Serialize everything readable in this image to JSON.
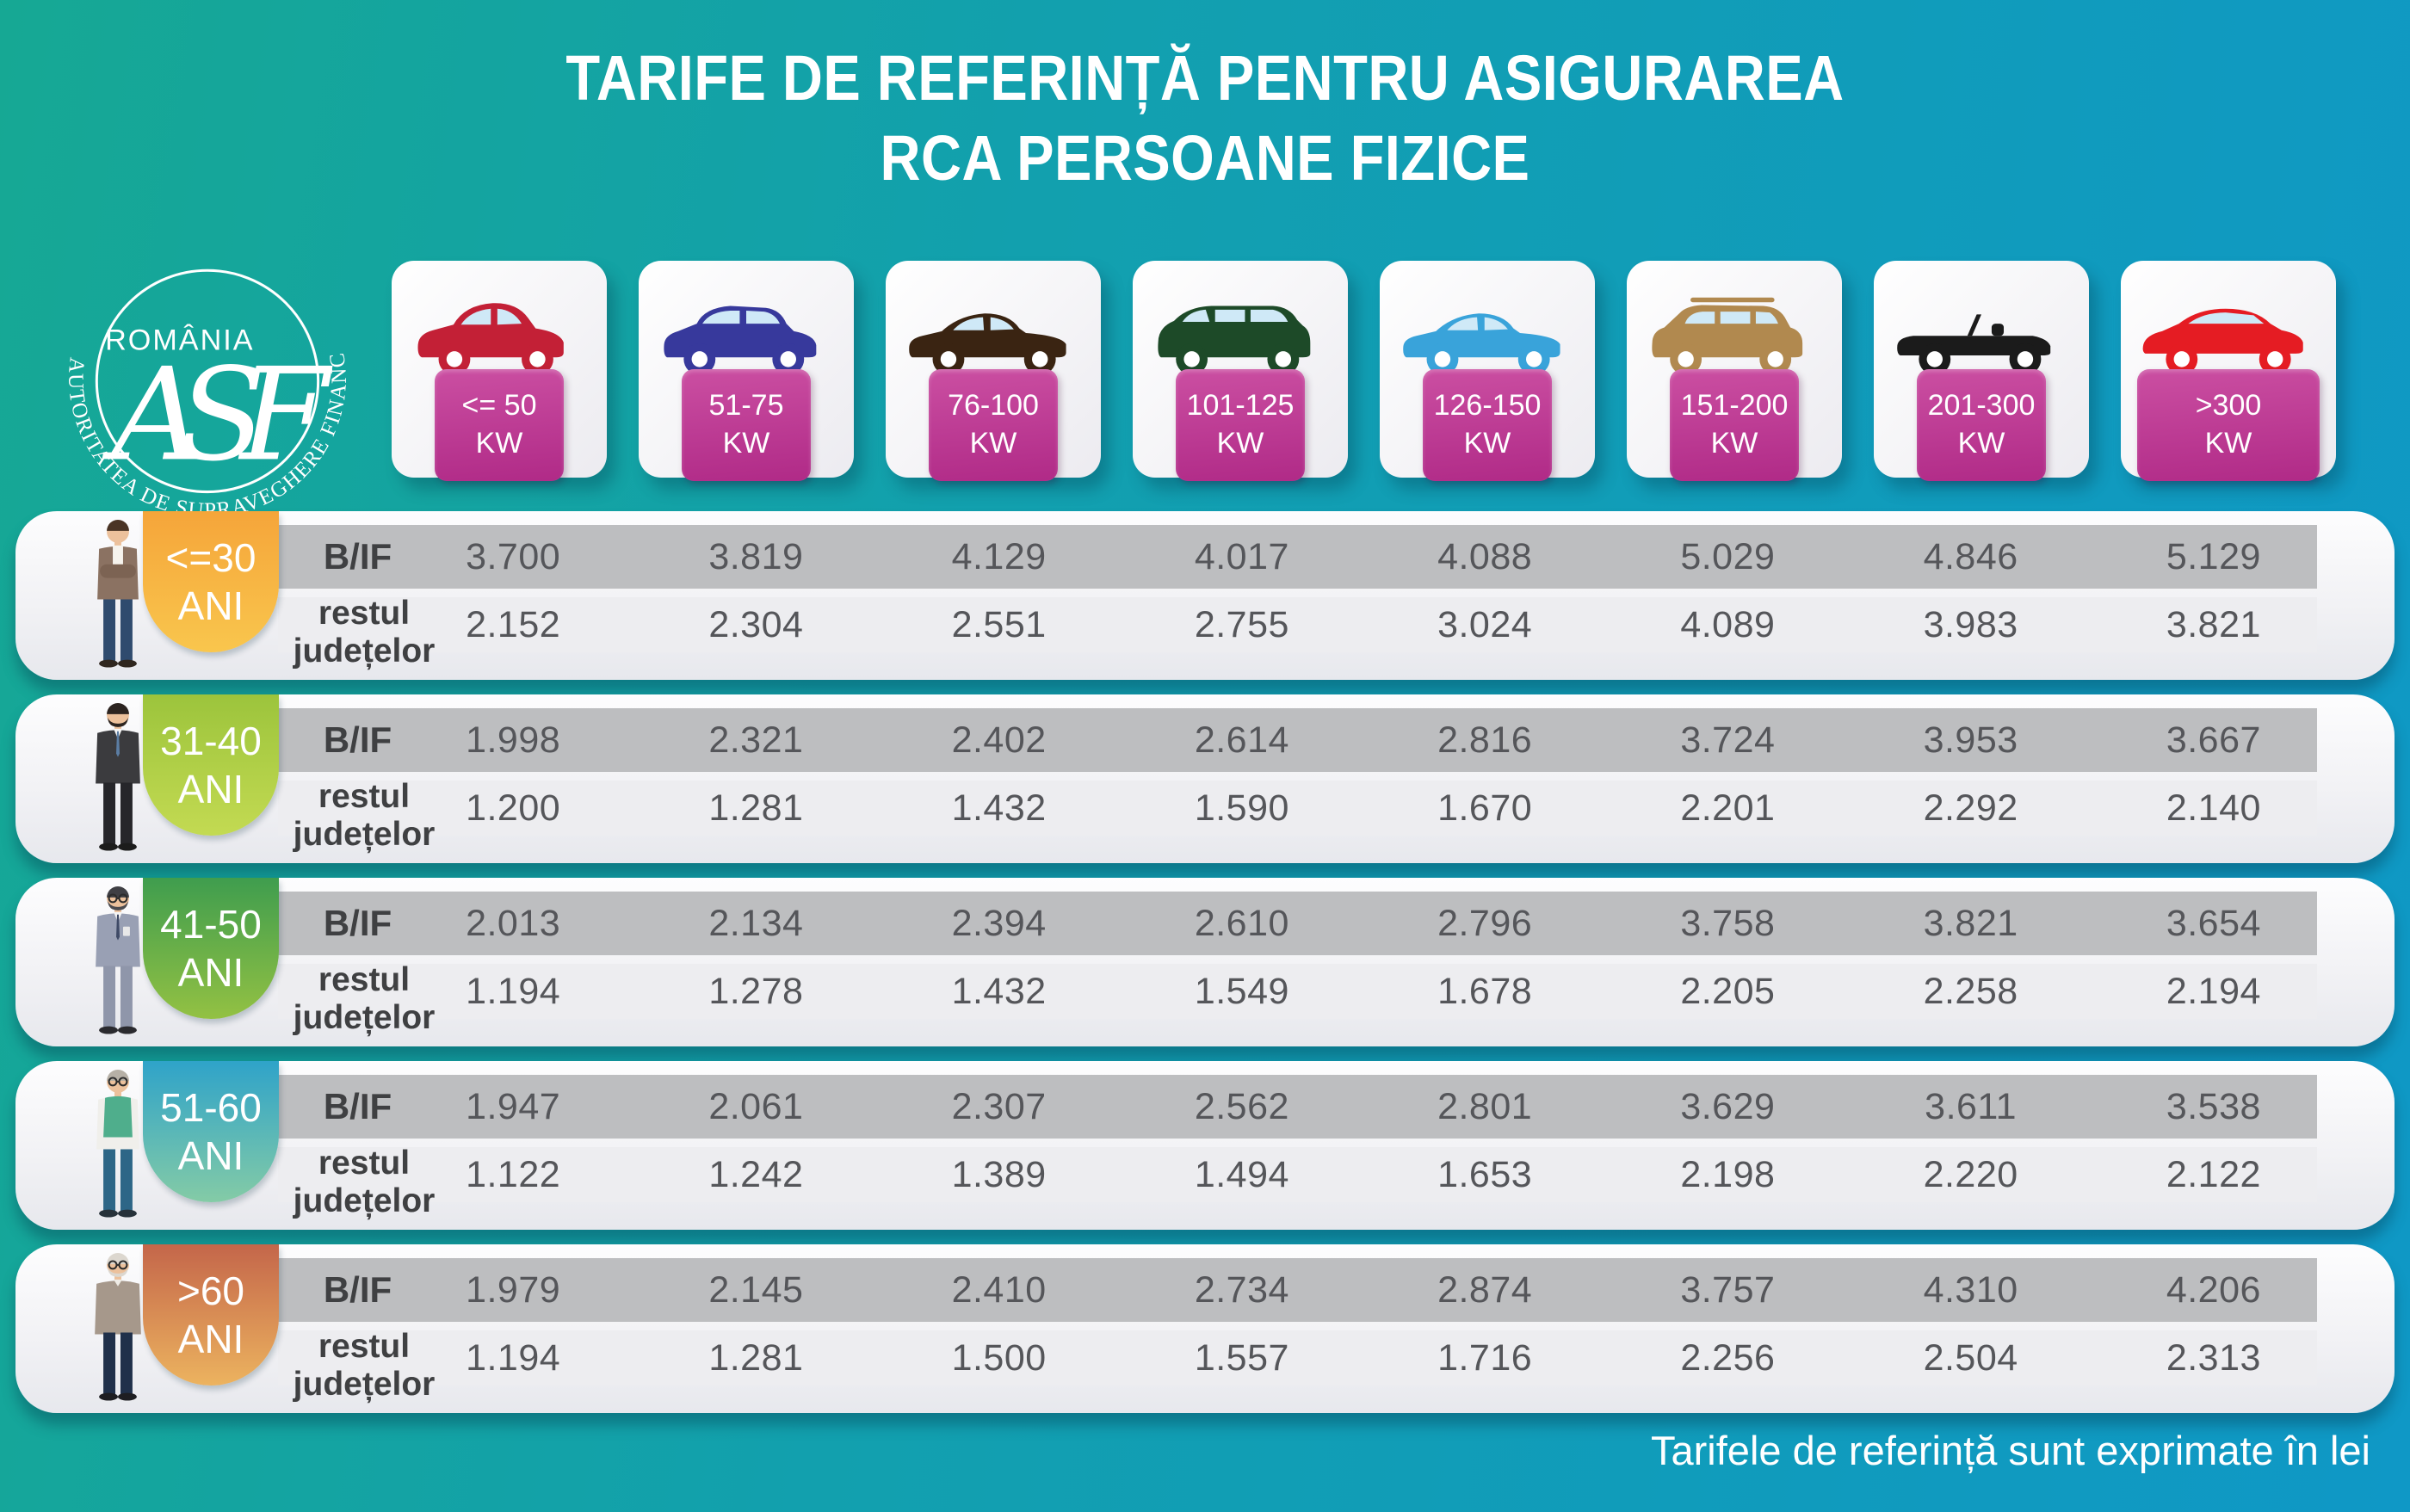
{
  "title": {
    "line1": "TARIFE DE REFERINȚĂ PENTRU ASIGURAREA",
    "line2": "RCA PERSOANE FIZICE"
  },
  "logo": {
    "country": "ROMÂNIA",
    "monogram": "ASF",
    "arc_text": "AUTORITATEA DE SUPRAVEGHERE FINANCIARĂ"
  },
  "power_columns": [
    {
      "range": "<= 50",
      "unit": "KW",
      "car": "hatchback",
      "car_color": "#c32036"
    },
    {
      "range": "51-75",
      "unit": "KW",
      "car": "crossover",
      "car_color": "#37399c"
    },
    {
      "range": "76-100",
      "unit": "KW",
      "car": "sedan",
      "car_color": "#3a2412"
    },
    {
      "range": "101-125",
      "unit": "KW",
      "car": "minivan",
      "car_color": "#1d4a28"
    },
    {
      "range": "126-150",
      "unit": "KW",
      "car": "sedan",
      "car_color": "#39a3da"
    },
    {
      "range": "151-200",
      "unit": "KW",
      "car": "suv",
      "car_color": "#b1894f"
    },
    {
      "range": "201-300",
      "unit": "KW",
      "car": "convertible",
      "car_color": "#1b1b1b"
    },
    {
      "range": ">300",
      "unit": "KW",
      "car": "sports",
      "car_color": "#e51c23"
    }
  ],
  "row_labels": {
    "bif": "B/IF",
    "rest_line1": "restul",
    "rest_line2": "județelor"
  },
  "age_groups": [
    {
      "range": "<=30",
      "suffix": "ANI",
      "person": "young-man",
      "badge_top": "#f5a53a",
      "badge_bottom": "#f9c64d",
      "bif": [
        "3.700",
        "3.819",
        "4.129",
        "4.017",
        "4.088",
        "5.029",
        "4.846",
        "5.129"
      ],
      "rest": [
        "2.152",
        "2.304",
        "2.551",
        "2.755",
        "3.024",
        "4.089",
        "3.983",
        "3.821"
      ]
    },
    {
      "range": "31-40",
      "suffix": "ANI",
      "person": "adult-man",
      "badge_top": "#9cc43c",
      "badge_bottom": "#c3da52",
      "bif": [
        "1.998",
        "2.321",
        "2.402",
        "2.614",
        "2.816",
        "3.724",
        "3.953",
        "3.667"
      ],
      "rest": [
        "1.200",
        "1.281",
        "1.432",
        "1.590",
        "1.670",
        "2.201",
        "2.292",
        "2.140"
      ]
    },
    {
      "range": "41-50",
      "suffix": "ANI",
      "person": "middle-aged-man",
      "badge_top": "#3f9d4e",
      "badge_bottom": "#93c143",
      "bif": [
        "2.013",
        "2.134",
        "2.394",
        "2.610",
        "2.796",
        "3.758",
        "3.821",
        "3.654"
      ],
      "rest": [
        "1.194",
        "1.278",
        "1.432",
        "1.549",
        "1.678",
        "2.205",
        "2.258",
        "2.194"
      ]
    },
    {
      "range": "51-60",
      "suffix": "ANI",
      "person": "senior-man",
      "badge_top": "#2fa3c9",
      "badge_bottom": "#84cba6",
      "bif": [
        "1.947",
        "2.061",
        "2.307",
        "2.562",
        "2.801",
        "3.629",
        "3.611",
        "3.538"
      ],
      "rest": [
        "1.122",
        "1.242",
        "1.389",
        "1.494",
        "1.653",
        "2.198",
        "2.220",
        "2.122"
      ]
    },
    {
      "range": ">60",
      "suffix": "ANI",
      "person": "elderly-man",
      "badge_top": "#c4664a",
      "badge_bottom": "#ecb35f",
      "bif": [
        "1.979",
        "2.145",
        "2.410",
        "2.734",
        "2.874",
        "3.757",
        "4.310",
        "4.206"
      ],
      "rest": [
        "1.194",
        "1.281",
        "1.500",
        "1.557",
        "1.716",
        "2.256",
        "2.504",
        "2.313"
      ]
    }
  ],
  "footnote": "Tarifele de referință sunt exprimate în lei",
  "colors": {
    "bg_left": "#16a894",
    "bg_mid": "#12a0ae",
    "bg_right": "#0f98c6",
    "kw_badge_top": "#cb4fa2",
    "kw_badge_bottom": "#b02a87",
    "band_dark": "#bdbec0",
    "band_light": "#ededf0",
    "label_text": "#3f4042",
    "value_text": "#55565a"
  },
  "chart_data": {
    "type": "table",
    "title": "TARIFE DE REFERINȚĂ PENTRU ASIGURAREA RCA PERSOANE FIZICE",
    "unit": "lei",
    "note": "Tarifele de referință sunt exprimate în lei",
    "columns": [
      "<= 50 KW",
      "51-75 KW",
      "76-100 KW",
      "101-125 KW",
      "126-150 KW",
      "151-200 KW",
      "201-300 KW",
      ">300 KW"
    ],
    "rows": [
      {
        "age_group": "<=30 ANI",
        "region": "B/IF",
        "values": [
          3700,
          3819,
          4129,
          4017,
          4088,
          5029,
          4846,
          5129
        ]
      },
      {
        "age_group": "<=30 ANI",
        "region": "restul județelor",
        "values": [
          2152,
          2304,
          2551,
          2755,
          3024,
          4089,
          3983,
          3821
        ]
      },
      {
        "age_group": "31-40 ANI",
        "region": "B/IF",
        "values": [
          1998,
          2321,
          2402,
          2614,
          2816,
          3724,
          3953,
          3667
        ]
      },
      {
        "age_group": "31-40 ANI",
        "region": "restul județelor",
        "values": [
          1200,
          1281,
          1432,
          1590,
          1670,
          2201,
          2292,
          2140
        ]
      },
      {
        "age_group": "41-50 ANI",
        "region": "B/IF",
        "values": [
          2013,
          2134,
          2394,
          2610,
          2796,
          3758,
          3821,
          3654
        ]
      },
      {
        "age_group": "41-50 ANI",
        "region": "restul județelor",
        "values": [
          1194,
          1278,
          1432,
          1549,
          1678,
          2205,
          2258,
          2194
        ]
      },
      {
        "age_group": "51-60 ANI",
        "region": "B/IF",
        "values": [
          1947,
          2061,
          2307,
          2562,
          2801,
          3629,
          3611,
          3538
        ]
      },
      {
        "age_group": "51-60 ANI",
        "region": "restul județelor",
        "values": [
          1122,
          1242,
          1389,
          1494,
          1653,
          2198,
          2220,
          2122
        ]
      },
      {
        "age_group": ">60 ANI",
        "region": "B/IF",
        "values": [
          1979,
          2145,
          2410,
          2734,
          2874,
          3757,
          4310,
          4206
        ]
      },
      {
        "age_group": ">60 ANI",
        "region": "restul județelor",
        "values": [
          1194,
          1281,
          1500,
          1557,
          1716,
          2256,
          2504,
          2313
        ]
      }
    ]
  }
}
